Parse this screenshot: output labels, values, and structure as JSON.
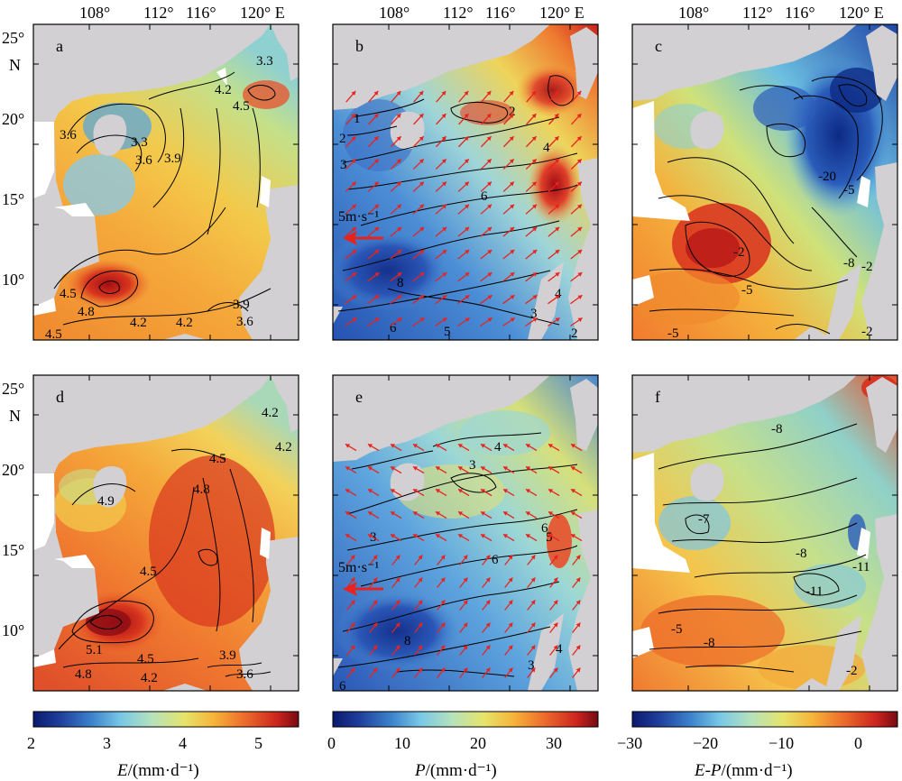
{
  "lon_ticks": [
    "108°",
    "112°",
    "116°",
    "120° E"
  ],
  "lat_ticks": [
    "25°",
    "20°",
    "15°",
    "10°"
  ],
  "lat_unit": "N",
  "panels": [
    {
      "label": "a",
      "variable": "E",
      "contour_labels": [
        "4.2",
        "4.5",
        "3.6",
        "3.3",
        "3.6",
        "3.9",
        "4.5",
        "4.8",
        "4.2",
        "3.9",
        "3.6",
        "4.5",
        "4.2",
        "3.3"
      ]
    },
    {
      "label": "b",
      "variable": "P",
      "contour_labels": [
        "1",
        "2",
        "3",
        "2",
        "4",
        "6",
        "8",
        "4",
        "3",
        "6",
        "5",
        "2"
      ],
      "wind_scale": "5m·s⁻¹"
    },
    {
      "label": "c",
      "variable": "E-P",
      "contour_labels": [
        "-20",
        "-5",
        "-2",
        "-8",
        "-5",
        "-2",
        "-5",
        "-2"
      ]
    },
    {
      "label": "d",
      "variable": "E",
      "contour_labels": [
        "4.5",
        "4.8",
        "5.1",
        "4.5",
        "4.8",
        "4.2",
        "3.9",
        "3.6",
        "4.2",
        "4.2",
        "4.5",
        "4.9"
      ]
    },
    {
      "label": "e",
      "variable": "P",
      "contour_labels": [
        "4",
        "3",
        "3",
        "6",
        "6",
        "8",
        "5",
        "4",
        "3",
        "6"
      ],
      "wind_scale": "5m·s⁻¹"
    },
    {
      "label": "f",
      "variable": "E-P",
      "contour_labels": [
        "-8",
        "-7",
        "-8",
        "-11",
        "-5",
        "-8",
        "-2",
        "-11"
      ]
    }
  ],
  "colorbars": [
    {
      "title_var": "E",
      "title_unit": "/(mm·d⁻¹)",
      "ticks": [
        "2",
        "3",
        "4",
        "5"
      ],
      "range": [
        2,
        5.5
      ]
    },
    {
      "title_var": "P",
      "title_unit": "/(mm·d⁻¹)",
      "ticks": [
        "0",
        "10",
        "20",
        "30"
      ],
      "range": [
        0,
        35
      ]
    },
    {
      "title_var": "E-P",
      "title_unit": "/(mm·d⁻¹)",
      "ticks": [
        "−30",
        "−20",
        "−10",
        "0"
      ],
      "range": [
        -30,
        5
      ]
    }
  ],
  "colors": {
    "land": "#d2d0d3",
    "missing": "#ffffff",
    "wind_arrow": "#e8231e",
    "contour": "#000000"
  }
}
